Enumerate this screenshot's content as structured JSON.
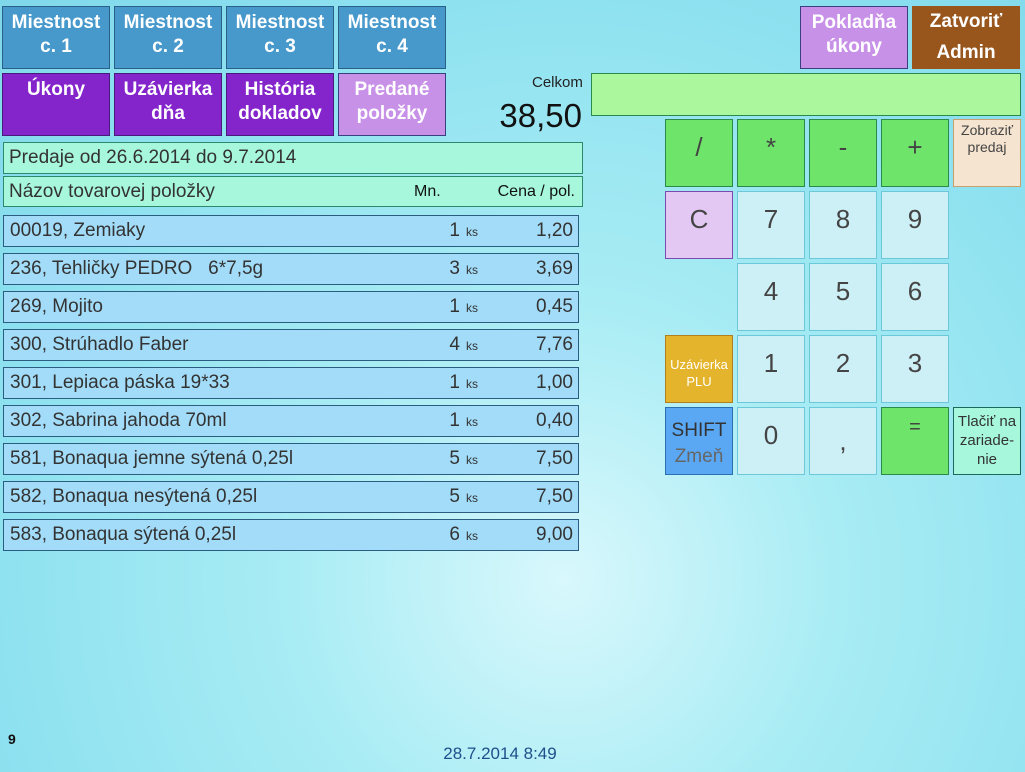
{
  "rooms": [
    {
      "l1": "Miestnost",
      "l2": "c. 1"
    },
    {
      "l1": "Miestnost",
      "l2": "c. 2"
    },
    {
      "l1": "Miestnost",
      "l2": "c. 3"
    },
    {
      "l1": "Miestnost",
      "l2": "c. 4"
    }
  ],
  "menu": [
    {
      "l1": "Úkony",
      "l2": ""
    },
    {
      "l1": "Uzávierka",
      "l2": "dňa"
    },
    {
      "l1": "História",
      "l2": "dokladov"
    },
    {
      "l1": "Predané",
      "l2": "položky"
    }
  ],
  "top_right": {
    "pokladna": {
      "l1": "Pokladňa",
      "l2": "úkony"
    },
    "zatvorit": {
      "l1": "Zatvoriť",
      "l2": "Admin"
    }
  },
  "total": {
    "label": "Celkom",
    "value": "38,50",
    "display": ""
  },
  "period": "Predaje od 26.6.2014 do 9.7.2014",
  "columns": {
    "name": "Názov tovarovej položky",
    "qty": "Mn.",
    "price": "Cena / pol."
  },
  "items": [
    {
      "name": "00019, Zemiaky",
      "qty": "1",
      "unit": "ks",
      "price": "1,20"
    },
    {
      "name": "236, Tehličky PEDRO   6*7,5g",
      "qty": "3",
      "unit": "ks",
      "price": "3,69"
    },
    {
      "name": "269, Mojito",
      "qty": "1",
      "unit": "ks",
      "price": "0,45"
    },
    {
      "name": "300, Strúhadlo Faber",
      "qty": "4",
      "unit": "ks",
      "price": "7,76"
    },
    {
      "name": "301, Lepiaca páska 19*33",
      "qty": "1",
      "unit": "ks",
      "price": "1,00"
    },
    {
      "name": "302, Sabrina jahoda 70ml",
      "qty": "1",
      "unit": "ks",
      "price": "0,40"
    },
    {
      "name": "581, Bonaqua jemne sýtená 0,25l",
      "qty": "5",
      "unit": "ks",
      "price": "7,50"
    },
    {
      "name": "582, Bonaqua nesýtená 0,25l",
      "qty": "5",
      "unit": "ks",
      "price": "7,50"
    },
    {
      "name": "583, Bonaqua sýtená 0,25l",
      "qty": "6",
      "unit": "ks",
      "price": "9,00"
    }
  ],
  "keypad": {
    "div": "/",
    "mul": "*",
    "sub": "-",
    "add": "+",
    "clear": "C",
    "k7": "7",
    "k8": "8",
    "k9": "9",
    "k4": "4",
    "k5": "5",
    "k6": "6",
    "k1": "1",
    "k2": "2",
    "k3": "3",
    "k0": "0",
    "comma": ",",
    "eq": "=",
    "zobrazit": "Zobraziť predaj",
    "uzavierka_plu_1": "Uzávierka",
    "uzavierka_plu_2": "PLU",
    "shift": "SHIFT",
    "zmen": "Zmeň",
    "tlacit": "Tlačiť na zariade-nie"
  },
  "footer": {
    "count": "9",
    "datetime": "28.7.2014 8:49"
  }
}
